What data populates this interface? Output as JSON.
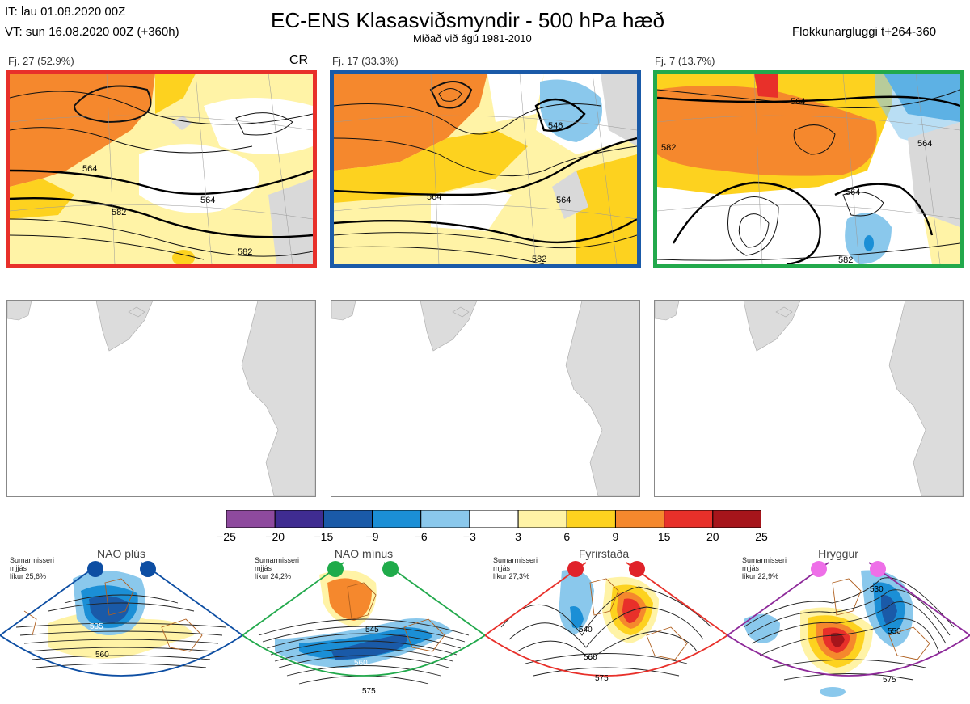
{
  "header": {
    "it_line": "IT: lau 01.08.2020 00Z",
    "vt_line": "VT: sun 16.08.2020 00Z  (+360h)",
    "title": "EC-ENS Klasasviðsmyndir - 500 hPa hæð",
    "subtitle": "Miðað við ágú 1981-2010",
    "window": "Flokkunargluggi t+264-360"
  },
  "clusters": [
    {
      "label": "Fj. 27 (52.9%)",
      "frame_color": "#e8302a",
      "tag": "CR",
      "contours": [
        "564",
        "564",
        "582",
        "582"
      ]
    },
    {
      "label": "Fj. 17 (33.3%)",
      "frame_color": "#1a5aa8",
      "tag": "",
      "contours": [
        "546",
        "564",
        "564",
        "582"
      ]
    },
    {
      "label": "Fj. 7 (13.7%)",
      "frame_color": "#22a94c",
      "tag": "",
      "contours": [
        "564",
        "582",
        "564",
        "564",
        "582"
      ]
    }
  ],
  "colorbar": {
    "ticks": [
      "−25",
      "−20",
      "−15",
      "−9",
      "−6",
      "−3",
      "3",
      "6",
      "9",
      "15",
      "20",
      "25"
    ],
    "colors": [
      "#8e4a9e",
      "#3f2c91",
      "#1a5aa8",
      "#1b8fd6",
      "#8ac8ec",
      "#ffffff",
      "#fff3a6",
      "#fdd21f",
      "#f5882d",
      "#e8302a",
      "#a6151b"
    ]
  },
  "regimes": [
    {
      "name": "NAO plús",
      "note": "Sumarmisseri\nmjjás\nlíkur 25,6%",
      "dot_color": "#0d4ea3",
      "frame_color": "#0d4ea3",
      "contours": [
        "535",
        "560"
      ]
    },
    {
      "name": "NAO mínus",
      "note": "Sumarmisseri\nmjjás\nlíkur 24,2%",
      "dot_color": "#1fab4a",
      "frame_color": "#22a94c",
      "contours": [
        "545",
        "560",
        "575"
      ]
    },
    {
      "name": "Fyrirstaða",
      "note": "Sumarmisseri\nmjjás\nlíkur 27,3%",
      "dot_color": "#e0222a",
      "frame_color": "#e8302a",
      "contours": [
        "540",
        "560",
        "575"
      ]
    },
    {
      "name": "Hryggur",
      "note": "Sumarmisseri\nmjjás\nlíkur 22,9%",
      "dot_color": "#ee6fe8",
      "frame_color": "#8e2a9a",
      "contours": [
        "530",
        "550",
        "575"
      ]
    }
  ]
}
